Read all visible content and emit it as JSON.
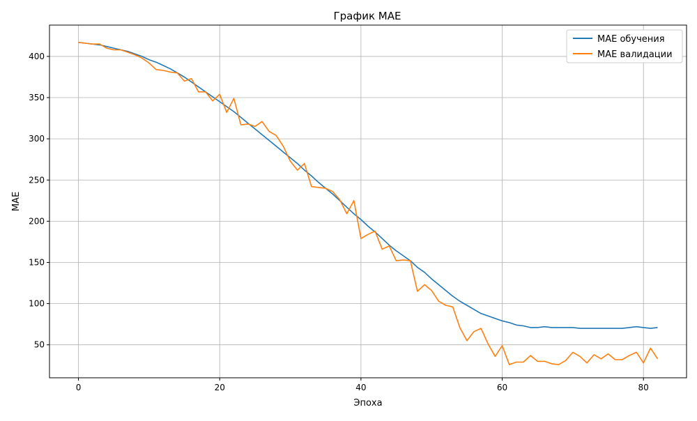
{
  "chart_data": {
    "type": "line",
    "title": "График MAE",
    "xlabel": "Эпоха",
    "ylabel": "MAE",
    "xlim": [
      -4.1,
      86.1
    ],
    "ylim": [
      10,
      438
    ],
    "xticks": [
      0,
      20,
      40,
      60,
      80
    ],
    "yticks": [
      50,
      100,
      150,
      200,
      250,
      300,
      350,
      400
    ],
    "grid": true,
    "legend_position": "top-right",
    "series": [
      {
        "name": "MAE обучения",
        "color": "#1f77b4",
        "x": [
          0,
          1,
          2,
          3,
          4,
          5,
          6,
          7,
          8,
          9,
          10,
          11,
          12,
          13,
          14,
          15,
          16,
          17,
          18,
          19,
          20,
          21,
          22,
          23,
          24,
          25,
          26,
          27,
          28,
          29,
          30,
          31,
          32,
          33,
          34,
          35,
          36,
          37,
          38,
          39,
          40,
          41,
          42,
          43,
          44,
          45,
          46,
          47,
          48,
          49,
          50,
          51,
          52,
          53,
          54,
          55,
          56,
          57,
          58,
          59,
          60,
          61,
          62,
          63,
          64,
          65,
          66,
          67,
          68,
          69,
          70,
          71,
          72,
          73,
          74,
          75,
          76,
          77,
          78,
          79,
          80,
          81,
          82
        ],
        "values": [
          417,
          416,
          415,
          414,
          412,
          410,
          408,
          406,
          403,
          400,
          396,
          393,
          389,
          385,
          380,
          375,
          369,
          363,
          357,
          351,
          345,
          339,
          333,
          326,
          319,
          312,
          305,
          298,
          291,
          284,
          277,
          270,
          262,
          255,
          247,
          240,
          233,
          225,
          217,
          209,
          202,
          194,
          187,
          179,
          171,
          164,
          158,
          152,
          144,
          138,
          130,
          123,
          116,
          109,
          103,
          98,
          93,
          88,
          85,
          82,
          79,
          77,
          74,
          73,
          71,
          71,
          72,
          71,
          71,
          71,
          71,
          70,
          70,
          70,
          70,
          70,
          70,
          70,
          71,
          72,
          71,
          70,
          71
        ],
        "note_values_estimated": true
      },
      {
        "name": "MAE валидации",
        "color": "#ff7f0e",
        "x": [
          0,
          1,
          2,
          3,
          4,
          5,
          6,
          7,
          8,
          9,
          10,
          11,
          12,
          13,
          14,
          15,
          16,
          17,
          18,
          19,
          20,
          21,
          22,
          23,
          24,
          25,
          26,
          27,
          28,
          29,
          30,
          31,
          32,
          33,
          34,
          35,
          36,
          37,
          38,
          39,
          40,
          41,
          42,
          43,
          44,
          45,
          46,
          47,
          48,
          49,
          50,
          51,
          52,
          53,
          54,
          55,
          56,
          57,
          58,
          59,
          60,
          61,
          62,
          63,
          64,
          65,
          66,
          67,
          68,
          69,
          70,
          71,
          72,
          73,
          74,
          75,
          76,
          77,
          78,
          79,
          80,
          81,
          82
        ],
        "values": [
          417,
          416,
          415,
          415,
          410,
          408,
          408,
          405,
          402,
          398,
          392,
          384,
          383,
          381,
          380,
          370,
          373,
          357,
          357,
          346,
          354,
          332,
          349,
          317,
          318,
          315,
          321,
          309,
          304,
          291,
          273,
          262,
          270,
          242,
          241,
          240,
          236,
          226,
          209,
          225,
          179,
          184,
          188,
          166,
          170,
          152,
          153,
          152,
          115,
          123,
          116,
          103,
          98,
          96,
          71,
          55,
          66,
          70,
          51,
          36,
          49,
          26,
          29,
          29,
          37,
          30,
          30,
          27,
          26,
          31,
          41,
          36,
          28,
          38,
          33,
          39,
          32,
          32,
          37,
          41,
          28,
          46,
          33
        ]
      }
    ]
  }
}
